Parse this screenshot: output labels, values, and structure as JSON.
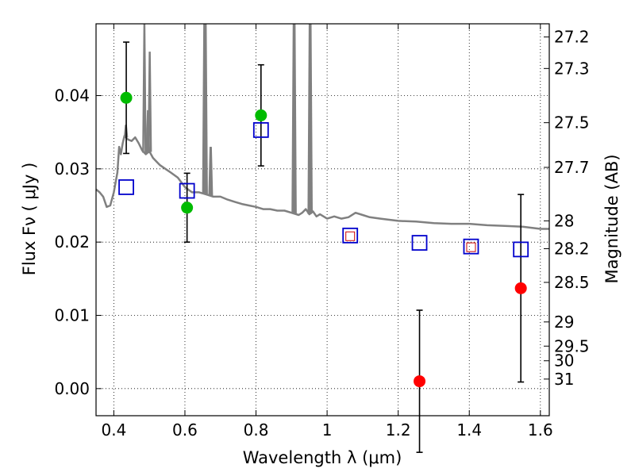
{
  "chart_data": {
    "type": "scatter",
    "xlabel": "Wavelength  λ (μm)",
    "ylabel": "Flux  Fν  ( μJy )",
    "ylabel_right": "Magnitude (AB)",
    "xlim": [
      0.35,
      1.625
    ],
    "ylim": [
      -0.0037,
      0.0498
    ],
    "grid": true,
    "x_ticks": [
      {
        "value": 0.4,
        "label": "0.4"
      },
      {
        "value": 0.6,
        "label": "0.6"
      },
      {
        "value": 0.8,
        "label": "0.8"
      },
      {
        "value": 1.0,
        "label": "1"
      },
      {
        "value": 1.2,
        "label": "1.2"
      },
      {
        "value": 1.4,
        "label": "1.4"
      },
      {
        "value": 1.6,
        "label": "1.6"
      }
    ],
    "y_ticks": [
      {
        "value": 0.0,
        "label": "0.00"
      },
      {
        "value": 0.01,
        "label": "0.01"
      },
      {
        "value": 0.02,
        "label": "0.02"
      },
      {
        "value": 0.03,
        "label": "0.03"
      },
      {
        "value": 0.04,
        "label": "0.04"
      }
    ],
    "right_ticks": [
      {
        "label": "27.2",
        "flux": 0.048
      },
      {
        "label": "27.3",
        "flux": 0.0437
      },
      {
        "label": "27.5",
        "flux": 0.0363
      },
      {
        "label": "27.7",
        "flux": 0.0302
      },
      {
        "label": "28",
        "flux": 0.0229
      },
      {
        "label": "28.2",
        "flux": 0.0191
      },
      {
        "label": "28.5",
        "flux": 0.0145
      },
      {
        "label": "29",
        "flux": 0.0091
      },
      {
        "label": "29.5",
        "flux": 0.0058
      },
      {
        "label": "30",
        "flux": 0.0038
      },
      {
        "label": "31",
        "flux": 0.0013
      }
    ],
    "series": [
      {
        "color": "#00bb00",
        "marker": "circle",
        "points": [
          {
            "x": 0.435,
            "y": 0.0397,
            "yerr_low": 0.0076,
            "yerr_high": 0.0076
          },
          {
            "x": 0.606,
            "y": 0.0247,
            "yerr_low": 0.0047,
            "yerr_high": 0.0047
          },
          {
            "x": 0.814,
            "y": 0.0373,
            "yerr_low": 0.0069,
            "yerr_high": 0.0069
          }
        ]
      },
      {
        "color": "#ff0000",
        "marker": "circle",
        "points": [
          {
            "x": 1.26,
            "y": 0.001,
            "yerr_low": 0.0097,
            "yerr_high": 0.0097
          },
          {
            "x": 1.545,
            "y": 0.0137,
            "yerr_low": 0.0128,
            "yerr_high": 0.0128
          }
        ]
      },
      {
        "color": "#0000cc",
        "marker": "open-square",
        "points": [
          {
            "x": 0.435,
            "y": 0.0275
          },
          {
            "x": 0.606,
            "y": 0.027
          },
          {
            "x": 0.814,
            "y": 0.0353
          },
          {
            "x": 1.065,
            "y": 0.0209
          },
          {
            "x": 1.26,
            "y": 0.0199
          },
          {
            "x": 1.405,
            "y": 0.0194
          },
          {
            "x": 1.545,
            "y": 0.019
          }
        ]
      },
      {
        "color": "#cc0000",
        "marker": "small-open-square",
        "points": [
          {
            "x": 1.065,
            "y": 0.0208
          },
          {
            "x": 1.405,
            "y": 0.0193
          }
        ]
      }
    ],
    "model_spectrum": {
      "color": "#808080",
      "points": [
        [
          0.35,
          0.0272
        ],
        [
          0.36,
          0.0268
        ],
        [
          0.37,
          0.0262
        ],
        [
          0.38,
          0.0248
        ],
        [
          0.39,
          0.025
        ],
        [
          0.4,
          0.0268
        ],
        [
          0.41,
          0.0295
        ],
        [
          0.415,
          0.033
        ],
        [
          0.42,
          0.032
        ],
        [
          0.425,
          0.0335
        ],
        [
          0.43,
          0.0345
        ],
        [
          0.44,
          0.034
        ],
        [
          0.45,
          0.0338
        ],
        [
          0.46,
          0.0343
        ],
        [
          0.47,
          0.0335
        ],
        [
          0.48,
          0.0325
        ],
        [
          0.49,
          0.032
        ],
        [
          0.5,
          0.0324
        ],
        [
          0.51,
          0.0315
        ],
        [
          0.52,
          0.031
        ],
        [
          0.53,
          0.0305
        ],
        [
          0.545,
          0.03
        ],
        [
          0.56,
          0.0295
        ],
        [
          0.58,
          0.0288
        ],
        [
          0.6,
          0.0275
        ],
        [
          0.62,
          0.0268
        ],
        [
          0.64,
          0.0268
        ],
        [
          0.66,
          0.0265
        ],
        [
          0.68,
          0.0262
        ],
        [
          0.7,
          0.0262
        ],
        [
          0.72,
          0.0258
        ],
        [
          0.74,
          0.0255
        ],
        [
          0.76,
          0.0252
        ],
        [
          0.78,
          0.025
        ],
        [
          0.8,
          0.0248
        ],
        [
          0.82,
          0.0245
        ],
        [
          0.84,
          0.0245
        ],
        [
          0.86,
          0.0243
        ],
        [
          0.88,
          0.0243
        ],
        [
          0.9,
          0.024
        ],
        [
          0.92,
          0.0237
        ],
        [
          0.93,
          0.024
        ],
        [
          0.94,
          0.0245
        ],
        [
          0.95,
          0.0238
        ],
        [
          0.96,
          0.0242
        ],
        [
          0.97,
          0.0235
        ],
        [
          0.98,
          0.0238
        ],
        [
          1.0,
          0.0232
        ],
        [
          1.02,
          0.0235
        ],
        [
          1.04,
          0.0232
        ],
        [
          1.06,
          0.0234
        ],
        [
          1.08,
          0.024
        ],
        [
          1.1,
          0.0237
        ],
        [
          1.12,
          0.0234
        ],
        [
          1.15,
          0.0232
        ],
        [
          1.2,
          0.0229
        ],
        [
          1.25,
          0.0228
        ],
        [
          1.3,
          0.0226
        ],
        [
          1.35,
          0.0225
        ],
        [
          1.4,
          0.0225
        ],
        [
          1.45,
          0.0223
        ],
        [
          1.5,
          0.0222
        ],
        [
          1.55,
          0.0221
        ],
        [
          1.6,
          0.0218
        ],
        [
          1.625,
          0.0218
        ]
      ],
      "emission_lines": [
        {
          "x": 0.434,
          "peak": 0.036
        },
        {
          "x": 0.486,
          "peak": 0.0498
        },
        {
          "x": 0.496,
          "peak": 0.038
        },
        {
          "x": 0.501,
          "peak": 0.046
        },
        {
          "x": 0.6545,
          "peak": 0.0498
        },
        {
          "x": 0.6565,
          "peak": 0.0498
        },
        {
          "x": 0.6585,
          "peak": 0.0498
        },
        {
          "x": 0.672,
          "peak": 0.033
        },
        {
          "x": 0.673,
          "peak": 0.033
        },
        {
          "x": 0.906,
          "peak": 0.0498
        },
        {
          "x": 0.9085,
          "peak": 0.0498
        },
        {
          "x": 0.951,
          "peak": 0.0498
        },
        {
          "x": 0.9535,
          "peak": 0.0498
        }
      ]
    }
  }
}
